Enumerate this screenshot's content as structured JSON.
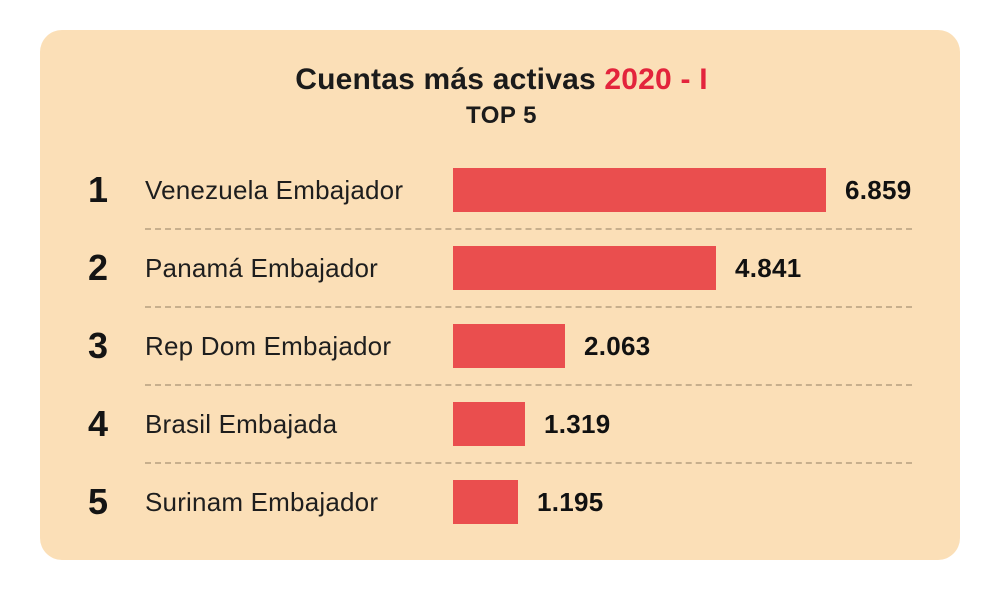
{
  "title": {
    "main": "Cuentas más activas",
    "period": "2020 - I",
    "subtitle": "TOP 5"
  },
  "colors": {
    "card_bg": "#FBDFB7",
    "bar": "#EA4E4E",
    "accent_red": "#E3243C",
    "text": "#1b1b1b",
    "divider": "#74624A"
  },
  "chart_data": {
    "type": "bar",
    "orientation": "horizontal",
    "title": "Cuentas más activas 2020 - I",
    "subtitle": "TOP 5",
    "categories": [
      "Venezuela Embajador",
      "Panamá Embajador",
      "Rep Dom Embajador",
      "Brasil Embajada",
      "Surinam Embajador"
    ],
    "ranks": [
      "1",
      "2",
      "3",
      "4",
      "5"
    ],
    "values": [
      6859,
      4841,
      2063,
      1319,
      1195
    ],
    "value_labels": [
      "6.859",
      "4.841",
      "2.063",
      "1.319",
      "1.195"
    ],
    "xlim": [
      0,
      6859
    ],
    "grid": false,
    "legend": false
  }
}
